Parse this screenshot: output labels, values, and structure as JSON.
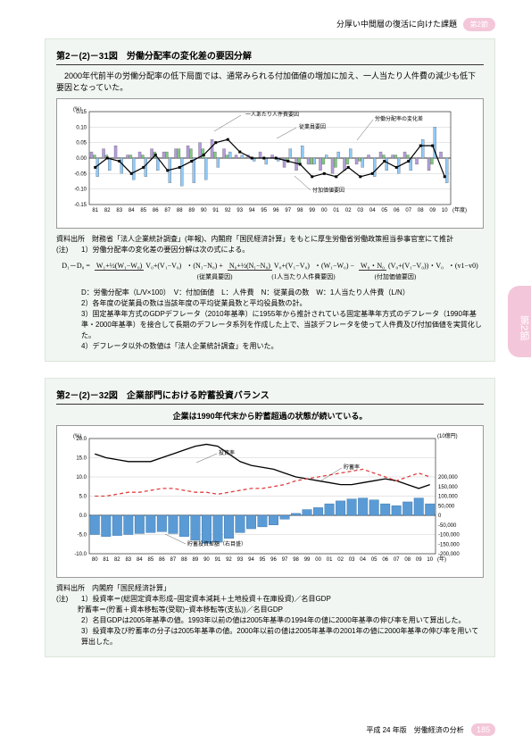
{
  "header": {
    "text": "分厚い中間層の復活に向けた課題",
    "section": "第2節"
  },
  "side_tab": "第2節",
  "fig1": {
    "title": "第2－(2)－31図　労働分配率の変化差の要因分解",
    "subtitle": "2000年代前半の労働分配率の低下局面では、通常みられる付加価値の増加に加え、一人当たり人件費の減少も低下要因となっていた。",
    "y_unit": "(%)",
    "x_unit": "(年度)",
    "ylim": [
      -0.15,
      0.15
    ],
    "yticks": [
      -0.15,
      -0.1,
      -0.05,
      0,
      0.05,
      0.1,
      0.15
    ],
    "x_start": 1981,
    "x_end": 2010,
    "legend": {
      "l1": "一人あたり人件費要因",
      "l2": "従業員要因",
      "l3": "付加価値要因",
      "l4": "労働分配率の変化差"
    },
    "colors": {
      "emp": "#7fc97f",
      "comp": "#b39ddb",
      "va": "#90caf9",
      "line": "#000",
      "border": "#555",
      "bg": "#fff"
    },
    "series": {
      "comp": [
        0.02,
        0.03,
        0.04,
        0.01,
        0.02,
        0.03,
        0.02,
        0.03,
        0.04,
        0.05,
        0.06,
        0.03,
        0.01,
        0.01,
        0.02,
        0.01,
        -0.03,
        -0.04,
        -0.02,
        -0.04,
        -0.05,
        -0.04,
        -0.02,
        0.01,
        0.02,
        0.01,
        0.02,
        -0.02,
        -0.04,
        0.02
      ],
      "emp": [
        0.01,
        0.01,
        0.0,
        0.01,
        0.01,
        0.02,
        0.02,
        0.03,
        0.03,
        0.03,
        0.02,
        0.01,
        0.0,
        0.0,
        0.0,
        0.0,
        -0.01,
        -0.02,
        -0.02,
        -0.02,
        -0.03,
        -0.02,
        -0.01,
        0.0,
        0.01,
        0.01,
        0.01,
        0.0,
        -0.02,
        0.0
      ],
      "va": [
        -0.06,
        -0.04,
        -0.05,
        -0.07,
        -0.06,
        -0.04,
        -0.08,
        -0.09,
        -0.08,
        -0.07,
        -0.03,
        0.02,
        0.01,
        -0.01,
        -0.02,
        -0.01,
        0.03,
        0.04,
        -0.02,
        0.01,
        0.02,
        0.03,
        -0.03,
        -0.06,
        -0.04,
        -0.05,
        -0.04,
        0.06,
        0.1,
        -0.08
      ],
      "line": [
        -0.03,
        0.0,
        -0.01,
        -0.05,
        -0.03,
        0.01,
        -0.04,
        -0.03,
        -0.01,
        0.01,
        0.05,
        0.06,
        0.02,
        0.0,
        0.0,
        0.0,
        -0.01,
        -0.02,
        -0.06,
        -0.05,
        -0.06,
        -0.03,
        -0.06,
        -0.05,
        -0.01,
        -0.03,
        -0.01,
        0.04,
        0.04,
        -0.06
      ]
    },
    "source": "資料出所　財務省「法人企業統計調査」(年報)、内閣府「国民経済計算」をもとに厚生労働省労働政策担当参事官室にて推計",
    "note_label": "(注)",
    "note1": "1）労働分配率の変化差の要因分解は次の式による。",
    "formula": {
      "lhs": "D₁－D₀ =",
      "t1_num": "W₁+½(W₁−W₀)",
      "t1_den": "V₀+(V₁−V₀)",
      "t1_mul": "・(N₁−N₀)",
      "t1_lab": "(従業員要因)",
      "t2_num": "N₀+½(N₁−N₀)",
      "t2_den": "V₀+(V₁−V₀)",
      "t2_mul": "・(W₁−W₀)",
      "t2_lab": "(1人当たり人件費要因)",
      "t3_num": "W₀・N₀",
      "t3_den": "(V₀+(V₁−V₀))・V₀",
      "t3_mul": "・(v1−v0)",
      "t3_lab": "(付加価値要因)"
    },
    "note_def": "D：労働分配率（L/V×100）　V：付加価値　L：人件費　N：従業員の数　W：1人当たり人件費（L/N）",
    "note2": "2）各年度の従業員の数は当該年度の平均従業員数と平均役員数の計。",
    "note3": "3）固定基準年方式のGDPデフレータ（2010年基準）に1955年から推計されている固定基準年方式のデフレータ（1990年基準・2000年基準）を接合して長期のデフレータ系列を作成した上で、当該デフレータを使って人件費及び付加価値を実質化した。",
    "note4": "4）デフレータ以外の数値は「法人企業統計調査」を用いた。"
  },
  "fig2": {
    "title": "第2－(2)－32図　企業部門における貯蓄投資バランス",
    "subtitle": "企業は1990年代末から貯蓄超過の状態が続いている。",
    "y_left_unit": "(%)",
    "y_right_unit": "(10億円)",
    "x_unit": "(年)",
    "ylim_left": [
      -10,
      20
    ],
    "yticks_left": [
      -10,
      -5,
      0,
      5,
      10,
      15,
      20
    ],
    "ylim_right": [
      -200000,
      400000
    ],
    "yticks_right": [
      -200000,
      -150000,
      -100000,
      -50000,
      0,
      50000,
      100000,
      150000,
      200000
    ],
    "x_start": 1980,
    "x_end": 2010,
    "legend": {
      "inv": "投資率",
      "sav": "貯蓄率",
      "bal": "貯蓄投資差額（右目盛）"
    },
    "colors": {
      "bar": "#5b9bd5",
      "bar_border": "#2e6da4",
      "inv": "#000",
      "sav": "#e04040",
      "bg": "#fff"
    },
    "series": {
      "bar": [
        -100000,
        -110000,
        -105000,
        -100000,
        -95000,
        -90000,
        -85000,
        -95000,
        -110000,
        -130000,
        -145000,
        -140000,
        -120000,
        -90000,
        -70000,
        -60000,
        -50000,
        -20000,
        10000,
        30000,
        40000,
        60000,
        75000,
        85000,
        90000,
        80000,
        60000,
        50000,
        70000,
        90000,
        60000
      ],
      "inv": [
        16,
        15,
        14.5,
        14,
        14,
        14,
        15,
        16,
        17,
        18,
        18.5,
        18,
        16,
        14,
        13,
        12.5,
        12,
        11,
        10,
        9.5,
        9,
        8.5,
        8,
        8,
        8.5,
        9,
        9.5,
        9,
        8,
        7,
        8
      ],
      "sav": [
        5,
        5,
        5.5,
        6,
        6,
        6.5,
        7,
        7,
        6.5,
        6,
        6,
        5.5,
        6,
        6.5,
        7,
        7,
        7.5,
        8,
        9,
        9.5,
        10,
        10.5,
        11,
        11.5,
        12,
        11,
        10,
        9,
        10,
        11,
        10
      ]
    },
    "source": "資料出所　内閣府「国民経済計算」",
    "note_label": "(注)",
    "note1": "1）投資率＝(総固定資本形成−固定資本減耗＋土地投資＋在庫投資)／名目GDP\n　　　貯蓄率＝(貯蓄＋資本移転等(受取)−資本移転等(支払))／名目GDP",
    "note2": "2）名目GDPは2005年基準の値。1993年以前の値は2005年基準の1994年の値に2000年基準の伸び率を用いて算出した。",
    "note3": "3）投資率及び貯蓄率の分子は2005年基準の値。2000年以前の値は2005年基準の2001年の値に2000年基準の伸び率を用いて算出した。"
  },
  "footer": {
    "text": "平成 24 年版　労働経済の分析",
    "page": "185"
  }
}
